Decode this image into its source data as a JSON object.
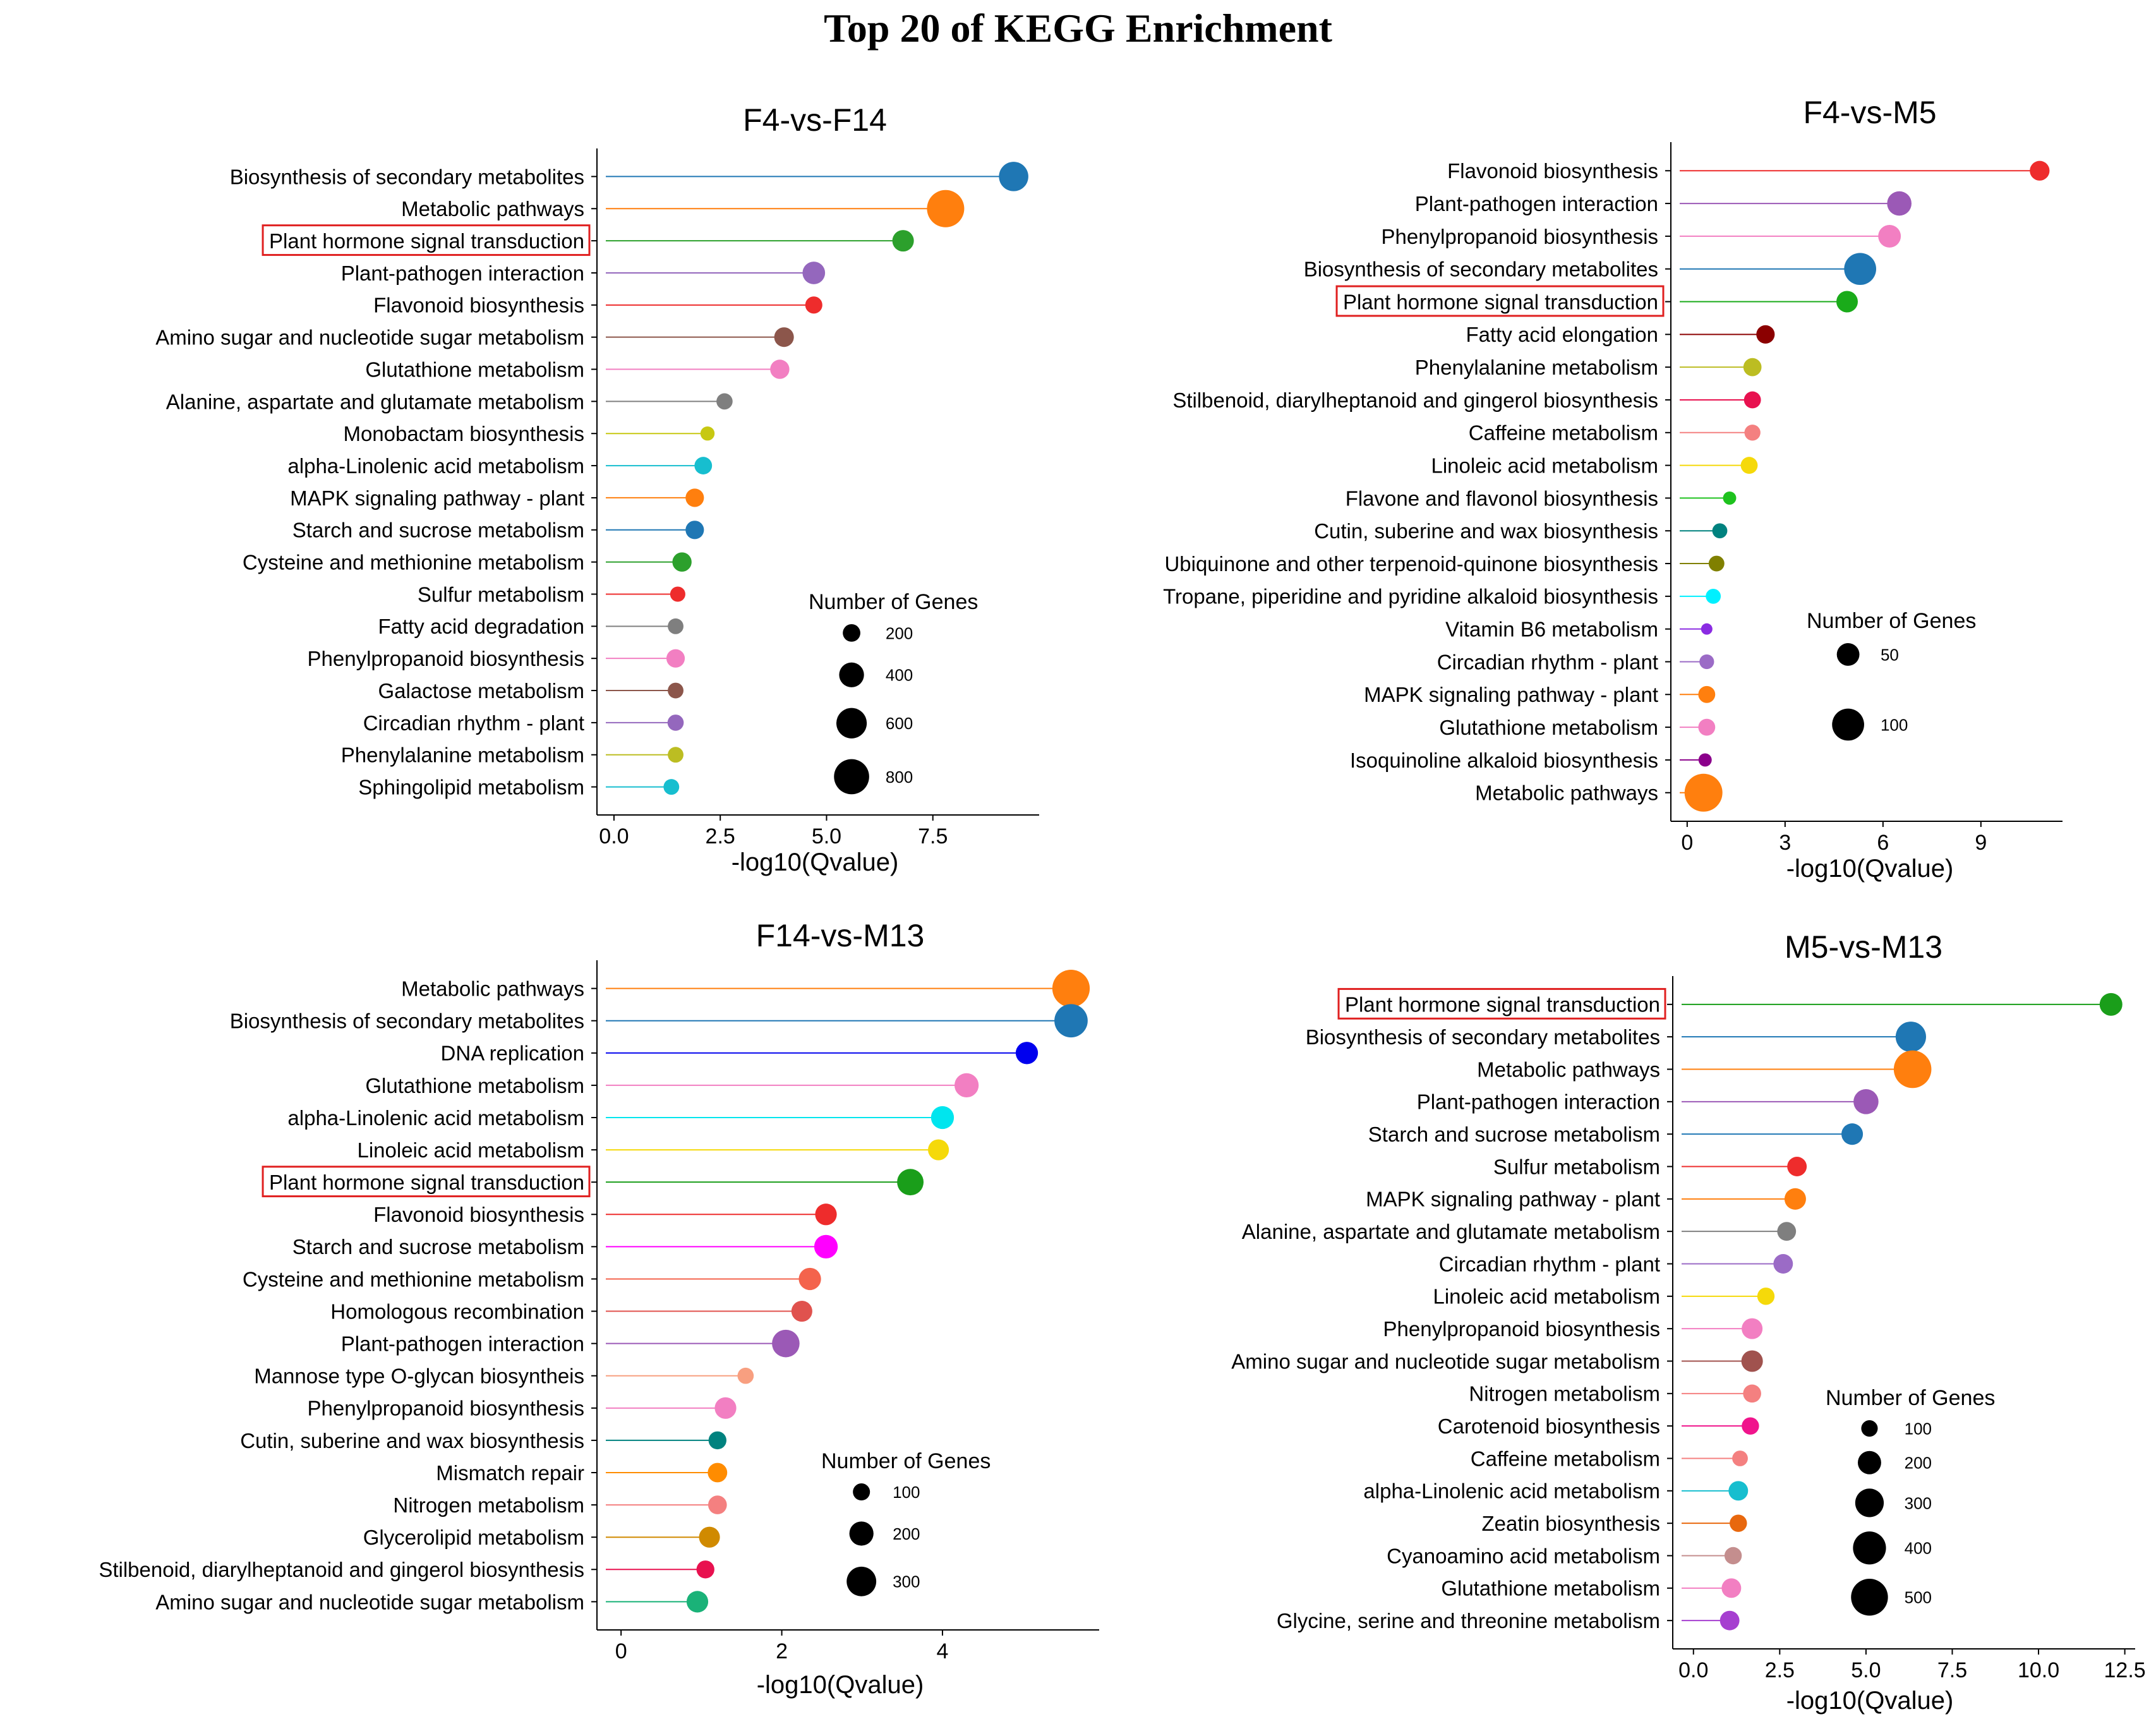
{
  "figure": {
    "title": "Top 20 of KEGG Enrichment"
  },
  "chart_data": [
    {
      "id": "p1",
      "type": "lollipop",
      "title": "F4-vs-F14",
      "xlabel": "-log10(Qvalue)",
      "xlim": [
        -0.4,
        10
      ],
      "xticks": [
        0,
        2.5,
        5,
        7.5
      ],
      "xtick_labels": [
        "0.0",
        "2.5",
        "5.0",
        "7.5"
      ],
      "highlight": "Plant hormone signal transduction",
      "size_legend": {
        "title": "Number of Genes",
        "values": [
          200,
          400,
          600,
          800
        ],
        "labels": [
          "200",
          "400",
          "600",
          "800"
        ]
      },
      "categories": [
        "Biosynthesis of secondary metabolites",
        "Metabolic pathways",
        "Plant hormone signal transduction",
        "Plant-pathogen interaction",
        "Flavonoid biosynthesis",
        "Amino sugar and nucleotide sugar metabolism",
        "Glutathione metabolism",
        "Alanine, aspartate and glutamate metabolism",
        "Monobactam biosynthesis",
        "alpha-Linolenic acid metabolism",
        "MAPK signaling pathway - plant",
        "Starch and sucrose metabolism",
        "Cysteine and methionine metabolism",
        "Sulfur metabolism",
        "Fatty acid degradation",
        "Phenylpropanoid biosynthesis",
        "Galactose metabolism",
        "Circadian rhythm - plant",
        "Phenylalanine metabolism",
        "Sphingolipid metabolism"
      ],
      "values": [
        9.4,
        7.8,
        6.8,
        4.7,
        4.7,
        4.0,
        3.9,
        2.6,
        2.2,
        2.1,
        1.9,
        1.9,
        1.6,
        1.5,
        1.45,
        1.45,
        1.45,
        1.45,
        1.45,
        1.35
      ],
      "gene_counts": [
        560,
        900,
        300,
        330,
        190,
        250,
        240,
        170,
        130,
        200,
        220,
        220,
        240,
        150,
        160,
        220,
        160,
        170,
        160,
        160
      ],
      "colors": [
        "#1f77b4",
        "#ff7f0e",
        "#2ca02c",
        "#9467bd",
        "#ee2c2c",
        "#8c564b",
        "#f27fc2",
        "#7f7f7f",
        "#c7c812",
        "#17becf",
        "#ff7f0e",
        "#1f77b4",
        "#2ca02c",
        "#ee2c2c",
        "#7f7f7f",
        "#f27fc2",
        "#8c564b",
        "#9467bd",
        "#bcbd22",
        "#17becf"
      ]
    },
    {
      "id": "p2",
      "type": "lollipop",
      "title": "F4-vs-M5",
      "xlabel": "-log10(Qvalue)",
      "xlim": [
        -0.5,
        11.5
      ],
      "xticks": [
        0,
        3,
        6,
        9
      ],
      "xtick_labels": [
        "0",
        "3",
        "6",
        "9"
      ],
      "highlight": "Plant hormone signal transduction",
      "size_legend": {
        "title": "Number of Genes",
        "values": [
          50,
          100
        ],
        "labels": [
          "50",
          "100"
        ]
      },
      "categories": [
        "Flavonoid biosynthesis",
        "Plant-pathogen interaction",
        "Phenylpropanoid biosynthesis",
        "Biosynthesis of secondary metabolites",
        "Plant hormone signal transduction",
        "Fatty acid elongation",
        "Phenylalanine metabolism",
        "Stilbenoid, diarylheptanoid and gingerol biosynthesis",
        "Caffeine metabolism",
        "Linoleic acid metabolism",
        "Flavone and flavonol biosynthesis",
        "Cutin, suberine and wax biosynthesis",
        "Ubiquinone and other terpenoid-quinone biosynthesis",
        "Tropane, piperidine and pyridine alkaloid biosynthesis",
        "Vitamin B6 metabolism",
        "Circadian rhythm - plant",
        "MAPK signaling pathway - plant",
        "Glutathione metabolism",
        "Isoquinoline alkaloid biosynthesis",
        "Metabolic pathways"
      ],
      "values": [
        10.8,
        6.5,
        6.2,
        5.3,
        4.9,
        2.4,
        2.0,
        2.0,
        2.0,
        1.9,
        1.3,
        1.0,
        0.9,
        0.8,
        0.6,
        0.6,
        0.6,
        0.6,
        0.55,
        0.5
      ],
      "gene_counts": [
        38,
        58,
        50,
        100,
        45,
        33,
        32,
        28,
        25,
        28,
        17,
        22,
        24,
        22,
        12,
        21,
        28,
        28,
        17,
        140
      ],
      "colors": [
        "#ee2c2c",
        "#9b59b6",
        "#f27fc2",
        "#1f77b4",
        "#1aab1a",
        "#8b0000",
        "#bcbd22",
        "#e8114f",
        "#f48080",
        "#f5d90a",
        "#1ec21e",
        "#00827f",
        "#808000",
        "#00f0ff",
        "#8a2be2",
        "#9b6bc6",
        "#ff7f0e",
        "#f27fc2",
        "#8b008b",
        "#ff7f0e"
      ]
    },
    {
      "id": "p3",
      "type": "lollipop",
      "title": "F14-vs-M13",
      "xlabel": "-log10(Qvalue)",
      "xlim": [
        -0.3,
        5.95
      ],
      "xticks": [
        0,
        2,
        4
      ],
      "xtick_labels": [
        "0",
        "2",
        "4"
      ],
      "highlight": "Plant hormone signal transduction",
      "size_legend": {
        "title": "Number of Genes",
        "values": [
          100,
          200,
          300
        ],
        "labels": [
          "100",
          "200",
          "300"
        ]
      },
      "categories": [
        "Metabolic pathways",
        "Biosynthesis of secondary metabolites",
        "DNA replication",
        "Glutathione metabolism",
        "alpha-Linolenic acid metabolism",
        "Linoleic acid metabolism",
        "Plant hormone signal transduction",
        "Flavonoid biosynthesis",
        "Starch and sucrose metabolism",
        "Cysteine and methionine metabolism",
        "Homologous recombination",
        "Plant-pathogen interaction",
        "Mannose type O-glycan biosyntheis",
        "Phenylpropanoid biosynthesis",
        "Cutin, suberine and wax biosynthesis",
        "Mismatch repair",
        "Nitrogen metabolism",
        "Glycerolipid metabolism",
        "Stilbenoid, diarylheptanoid and gingerol biosynthesis",
        "Amino sugar and nucleotide sugar metabolism"
      ],
      "values": [
        5.6,
        5.6,
        5.05,
        4.3,
        4.0,
        3.95,
        3.6,
        2.55,
        2.55,
        2.35,
        2.25,
        2.05,
        1.55,
        1.3,
        1.2,
        1.2,
        1.2,
        1.1,
        1.05,
        0.95
      ],
      "gene_counts": [
        480,
        380,
        170,
        200,
        180,
        150,
        240,
        160,
        190,
        170,
        150,
        260,
        90,
        160,
        110,
        130,
        120,
        150,
        110,
        160
      ],
      "colors": [
        "#ff7f0e",
        "#1f77b4",
        "#0000ee",
        "#f27fc2",
        "#00e5ee",
        "#f5d90a",
        "#1a9e1a",
        "#ee2c2c",
        "#ff00ff",
        "#f4634c",
        "#e0524e",
        "#9b59b6",
        "#f89f80",
        "#f27fc2",
        "#00827f",
        "#ff8c00",
        "#f48080",
        "#d08a00",
        "#e8114f",
        "#1ab278"
      ]
    },
    {
      "id": "p4",
      "type": "lollipop",
      "title": "M5-vs-M13",
      "xlabel": "-log10(Qvalue)",
      "xlim": [
        -0.6,
        12.8
      ],
      "xticks": [
        0,
        2.5,
        5,
        7.5,
        10,
        12.5
      ],
      "xtick_labels": [
        "0.0",
        "2.5",
        "5.0",
        "7.5",
        "10.0",
        "12.5"
      ],
      "highlight": "Plant hormone signal transduction",
      "size_legend": {
        "title": "Number of Genes",
        "values": [
          100,
          200,
          300,
          400,
          500
        ],
        "labels": [
          "100",
          "200",
          "300",
          "400",
          "500"
        ]
      },
      "categories": [
        "Plant hormone signal transduction",
        "Biosynthesis of secondary metabolites",
        "Metabolic pathways",
        "Plant-pathogen interaction",
        "Starch and sucrose metabolism",
        "Sulfur metabolism",
        "MAPK signaling pathway - plant",
        "Alanine, aspartate and glutamate metabolism",
        "Circadian rhythm - plant",
        "Linoleic acid metabolism",
        "Phenylpropanoid biosynthesis",
        "Amino sugar and nucleotide sugar metabolism",
        "Nitrogen metabolism",
        "Carotenoid biosynthesis",
        "Caffeine metabolism",
        "alpha-Linolenic acid metabolism",
        "Zeatin biosynthesis",
        "Cyanoamino acid metabolism",
        "Glutathione metabolism",
        "Glycine, serine and threonine metabolism"
      ],
      "values": [
        12.1,
        6.3,
        6.35,
        5.0,
        4.6,
        3.0,
        2.95,
        2.7,
        2.6,
        2.1,
        1.7,
        1.7,
        1.7,
        1.65,
        1.35,
        1.3,
        1.3,
        1.15,
        1.1,
        1.05
      ],
      "gene_counts": [
        190,
        340,
        520,
        230,
        170,
        140,
        170,
        130,
        140,
        110,
        160,
        170,
        120,
        110,
        90,
        140,
        110,
        110,
        140,
        140
      ],
      "colors": [
        "#1a9e1a",
        "#1f77b4",
        "#ff7f0e",
        "#9b59b6",
        "#1f77b4",
        "#ee2c2c",
        "#ff7f0e",
        "#7f7f7f",
        "#9b6bc6",
        "#f5d90a",
        "#f27fc2",
        "#a0524e",
        "#f48080",
        "#f0148c",
        "#f48080",
        "#17becf",
        "#e8680e",
        "#c48e8e",
        "#f27fc2",
        "#a63fd0"
      ]
    }
  ]
}
